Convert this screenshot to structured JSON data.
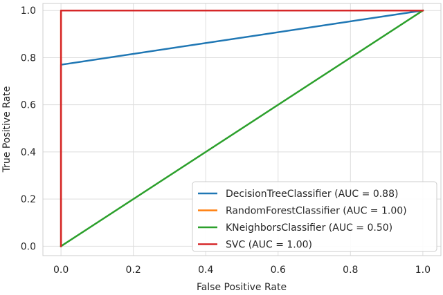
{
  "chart_data": {
    "type": "line",
    "xlabel": "False Positive Rate",
    "ylabel": "True Positive Rate",
    "xlim": [
      -0.05,
      1.05
    ],
    "ylim": [
      -0.04,
      1.03
    ],
    "x_ticks": [
      0.0,
      0.2,
      0.4,
      0.6,
      0.8,
      1.0
    ],
    "y_ticks": [
      0.0,
      0.2,
      0.4,
      0.6,
      0.8,
      1.0
    ],
    "x_tick_labels": [
      "0.0",
      "0.2",
      "0.4",
      "0.6",
      "0.8",
      "1.0"
    ],
    "y_tick_labels": [
      "0.0",
      "0.2",
      "0.4",
      "0.6",
      "0.8",
      "1.0"
    ],
    "grid": true,
    "legend_position": "lower-right",
    "series": [
      {
        "name": "DecisionTreeClassifier (AUC = 0.88)",
        "color": "#1f77b4",
        "x": [
          0.0,
          0.0,
          1.0
        ],
        "y": [
          0.0,
          0.77,
          1.0
        ]
      },
      {
        "name": "RandomForestClassifier (AUC = 1.00)",
        "color": "#ff7f0e",
        "x": [
          0.0,
          0.0,
          1.0
        ],
        "y": [
          0.0,
          1.0,
          1.0
        ]
      },
      {
        "name": "KNeighborsClassifier (AUC = 0.50)",
        "color": "#2ca02c",
        "x": [
          0.0,
          1.0
        ],
        "y": [
          0.0,
          1.0
        ]
      },
      {
        "name": "SVC (AUC = 1.00)",
        "color": "#d62728",
        "x": [
          0.0,
          0.0,
          1.0
        ],
        "y": [
          0.0,
          1.0,
          1.0
        ]
      }
    ]
  }
}
